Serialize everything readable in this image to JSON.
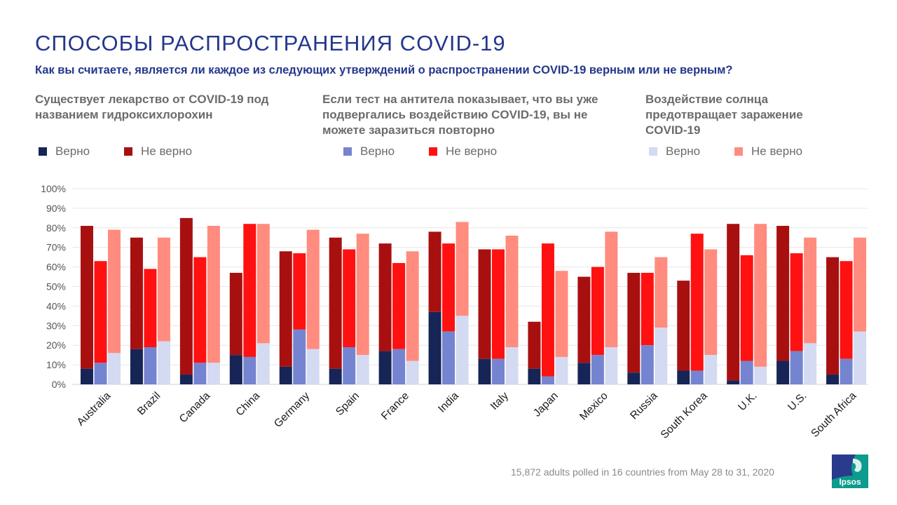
{
  "header": {
    "title": "СПОСОБЫ РАСПРОСТРАНЕНИЯ COVID-19",
    "subtitle": "Как вы считаете, является ли каждое из следующих утверждений о распространении COVID-19 верным или не верным?"
  },
  "statements": [
    {
      "text": "Существует лекарство от COVID-19 под названием гидроксихлорохин",
      "legend_true": "Верно",
      "legend_false": "Не верно",
      "color_true": "#162556",
      "color_false": "#a81010"
    },
    {
      "text": "Если тест на антитела показывает, что вы уже подвергались воздействию COVID-19, вы не можете заразиться повторно",
      "legend_true": "Верно",
      "legend_false": "Не верно",
      "color_true": "#7584d0",
      "color_false": "#ff1111"
    },
    {
      "text": "Воздействие солнца предотвращает заражение COVID-19",
      "legend_true": "Верно",
      "legend_false": "Не верно",
      "color_true": "#d3daf1",
      "color_false": "#ff8c7e"
    }
  ],
  "chart_data": {
    "type": "bar",
    "stacked": true,
    "ylim": [
      0,
      100
    ],
    "y_ticks": [
      "0%",
      "10%",
      "20%",
      "30%",
      "40%",
      "50%",
      "60%",
      "70%",
      "80%",
      "90%",
      "100%"
    ],
    "categories": [
      "Australia",
      "Brazil",
      "Canada",
      "China",
      "Germany",
      "Spain",
      "France",
      "India",
      "Italy",
      "Japan",
      "Mexico",
      "Russia",
      "South Korea",
      "U.K.",
      "U.S.",
      "South Africa"
    ],
    "series": [
      {
        "name": "Hydroxychloroquine",
        "true": [
          8,
          18,
          5,
          15,
          9,
          8,
          17,
          37,
          13,
          8,
          11,
          6,
          7,
          2,
          12,
          5
        ],
        "false": [
          73,
          57,
          80,
          42,
          59,
          67,
          55,
          41,
          56,
          24,
          44,
          51,
          46,
          80,
          69,
          60
        ]
      },
      {
        "name": "Antibody test",
        "true": [
          11,
          19,
          11,
          14,
          28,
          19,
          18,
          27,
          13,
          4,
          15,
          20,
          7,
          12,
          17,
          13
        ],
        "false": [
          52,
          40,
          54,
          68,
          39,
          50,
          44,
          45,
          56,
          68,
          45,
          37,
          70,
          54,
          50,
          50
        ]
      },
      {
        "name": "Sun exposure",
        "true": [
          16,
          22,
          11,
          21,
          18,
          15,
          12,
          35,
          19,
          14,
          19,
          29,
          15,
          9,
          21,
          27
        ],
        "false": [
          63,
          53,
          70,
          61,
          61,
          62,
          56,
          48,
          57,
          44,
          59,
          36,
          54,
          73,
          54,
          48
        ]
      }
    ]
  },
  "footer": {
    "note": "15,872 adults polled in 16 countries from May 28 to 31, 2020"
  },
  "logo": {
    "text": "Ipsos",
    "color": "#0d9b8d",
    "accent": "#2a3a8c"
  }
}
